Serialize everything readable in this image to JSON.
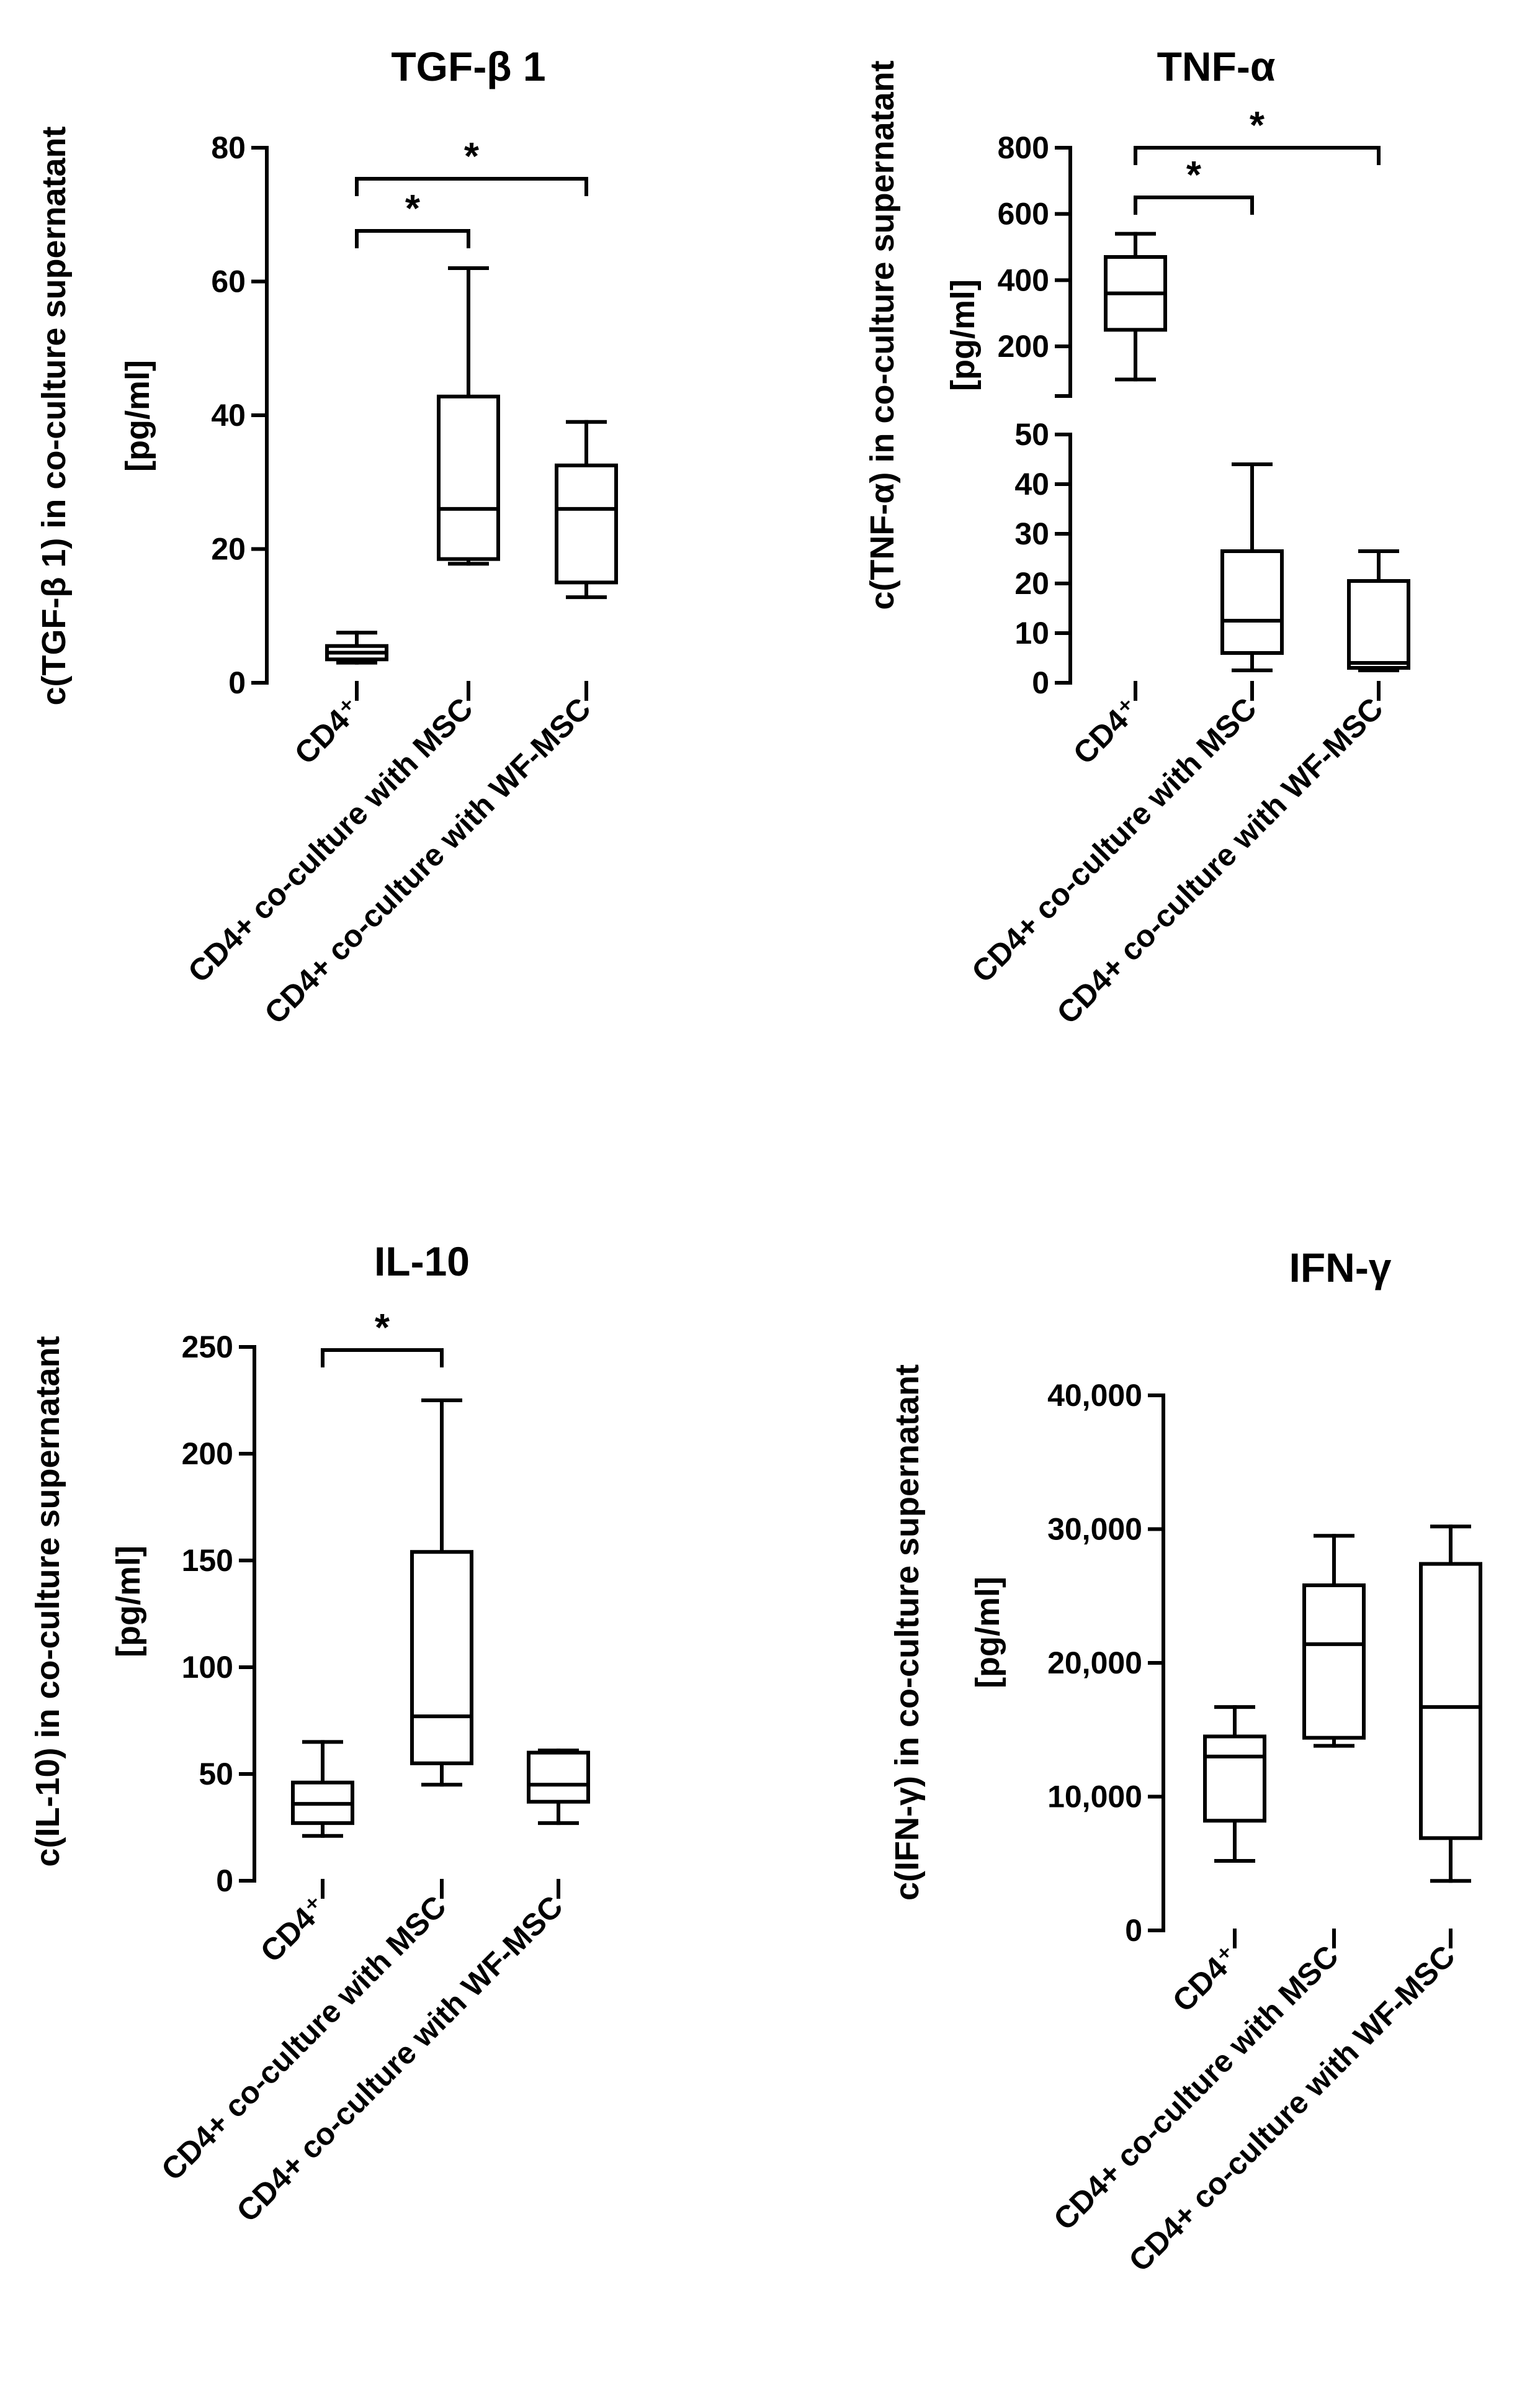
{
  "figure": {
    "background": "#ffffff",
    "ink": "#000000"
  },
  "chart_data": [
    {
      "type": "box",
      "title": "TGF-β 1",
      "ylabel": "c(TGF-β 1) in co-culture supernatant [pg/ml]",
      "ylabel_lines": [
        "c(TGF-β 1) in co-culture supernatant",
        "[pg/ml]"
      ],
      "ylim": [
        0,
        80
      ],
      "yticks": [
        0,
        20,
        40,
        60,
        80
      ],
      "ytick_labels": [
        "0",
        "20",
        "40",
        "60",
        "80"
      ],
      "categories": [
        "CD4⁺",
        "CD4+ co-culture with MSC",
        "CD4+ co-culture with WF-MSC"
      ],
      "boxes": [
        {
          "min": 3,
          "q1": 3.5,
          "median": 4.5,
          "q3": 5.5,
          "max": 7.5
        },
        {
          "min": 17.8,
          "q1": 18.5,
          "median": 26,
          "q3": 42.8,
          "max": 62
        },
        {
          "min": 12.8,
          "q1": 15,
          "median": 26,
          "q3": 32.5,
          "max": 39
        }
      ],
      "significance": [
        {
          "from": 0,
          "to": 1,
          "label": "*"
        },
        {
          "from": 0,
          "to": 2,
          "label": "*"
        }
      ]
    },
    {
      "type": "box",
      "title": "TNF-α",
      "ylabel": "c(TNF-α) in co-culture supernatant [pg/ml]",
      "ylabel_lines": [
        "c(TNF-α) in co-culture supernatant",
        "[pg/ml]"
      ],
      "broken_axis": true,
      "ylim_lower": [
        0,
        50
      ],
      "ylim_upper": [
        50,
        800
      ],
      "yticks_lower": [
        0,
        10,
        20,
        30,
        40,
        50
      ],
      "ytick_labels_lower": [
        "0",
        "10",
        "20",
        "30",
        "40",
        "50"
      ],
      "yticks_upper": [
        200,
        400,
        600,
        800
      ],
      "ytick_labels_upper": [
        "200",
        "400",
        "600",
        "800"
      ],
      "categories": [
        "CD4⁺",
        "CD4+ co-culture with MSC",
        "CD4+ co-culture with WF-MSC"
      ],
      "boxes": [
        {
          "min": 100,
          "q1": 250,
          "median": 360,
          "q3": 470,
          "max": 540
        },
        {
          "min": 2.5,
          "q1": 6,
          "median": 12.5,
          "q3": 26.5,
          "max": 44
        },
        {
          "min": 2.5,
          "q1": 3,
          "median": 4,
          "q3": 20.5,
          "max": 26.5
        }
      ],
      "significance": [
        {
          "from": 0,
          "to": 1,
          "label": "*"
        },
        {
          "from": 0,
          "to": 2,
          "label": "*"
        }
      ]
    },
    {
      "type": "box",
      "title": "IL-10",
      "ylabel": "c(IL-10) in co-culture supernatant [pg/ml]",
      "ylabel_lines": [
        "c(IL-10) in co-culture supernatant",
        "[pg/ml]"
      ],
      "ylim": [
        0,
        250
      ],
      "yticks": [
        0,
        50,
        100,
        150,
        200,
        250
      ],
      "ytick_labels": [
        "0",
        "50",
        "100",
        "150",
        "200",
        "250"
      ],
      "categories": [
        "CD4⁺",
        "CD4+ co-culture with MSC",
        "CD4+ co-culture with WF-MSC"
      ],
      "boxes": [
        {
          "min": 21,
          "q1": 27,
          "median": 36,
          "q3": 46,
          "max": 65
        },
        {
          "min": 45,
          "q1": 55,
          "median": 77,
          "q3": 154,
          "max": 225
        },
        {
          "min": 27,
          "q1": 37,
          "median": 45,
          "q3": 60,
          "max": 61
        }
      ],
      "significance": [
        {
          "from": 0,
          "to": 1,
          "label": "*"
        }
      ]
    },
    {
      "type": "box",
      "title": "IFN-γ",
      "ylabel": "c(IFN-γ) in co-culture supernatant [pg/ml]",
      "ylabel_lines": [
        "c(IFN-γ) in co-culture supernatant",
        "[pg/ml]"
      ],
      "ylim": [
        0,
        40000
      ],
      "yticks": [
        0,
        10000,
        20000,
        30000,
        40000
      ],
      "ytick_labels": [
        "0",
        "10,000",
        "20,000",
        "30,000",
        "40,000"
      ],
      "categories": [
        "CD4⁺",
        "CD4+ co-culture with MSC",
        "CD4+ co-culture with WF-MSC"
      ],
      "boxes": [
        {
          "min": 5200,
          "q1": 8200,
          "median": 13000,
          "q3": 14500,
          "max": 16700
        },
        {
          "min": 13800,
          "q1": 14400,
          "median": 21400,
          "q3": 25800,
          "max": 29500
        },
        {
          "min": 3700,
          "q1": 6900,
          "median": 16700,
          "q3": 27400,
          "max": 30200
        }
      ],
      "significance": []
    }
  ]
}
